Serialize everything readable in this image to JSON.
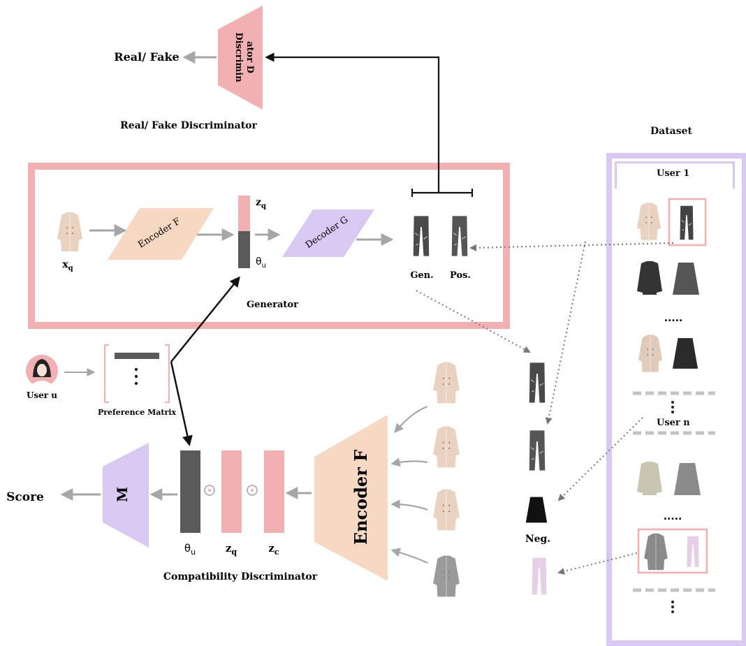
{
  "labels": {
    "real_fake": "Real/ Fake",
    "discriminator_line1": "Discrimin",
    "discriminator_line2": "ator D",
    "real_fake_discriminator": "Real/ Fake Discriminator",
    "dataset": "Dataset",
    "user1": "User 1",
    "user_n": "User n",
    "encoder_f_small": "Encoder F",
    "decoder_g": "Decoder G",
    "z_q_top": "z",
    "z_q_top_sub": "q",
    "theta_u_top": "θ",
    "theta_u_top_sub": "u",
    "x_q": "x",
    "x_q_sub": "q",
    "gen": "Gen.",
    "pos": "Pos.",
    "generator": "Generator",
    "user_u": "User u",
    "preference_matrix": "Preference Matrix",
    "score": "Score",
    "m": "M",
    "theta_u_bottom": "θ",
    "theta_u_bottom_sub": "u",
    "z_q_bottom": "z",
    "z_q_bottom_sub": "q",
    "z_c": "z",
    "z_c_sub": "c",
    "encoder_f_big": "Encoder F",
    "compatibility_discriminator": "Compatibility Discriminator",
    "neg": "Neg.",
    "dots": "....."
  },
  "colors": {
    "pink": "#f3b0b3",
    "peach": "#f7d8c2",
    "lavender": "#d9c8f2",
    "gray_arrow": "#a6a6a6",
    "dark_bar": "#5a5a5a"
  }
}
